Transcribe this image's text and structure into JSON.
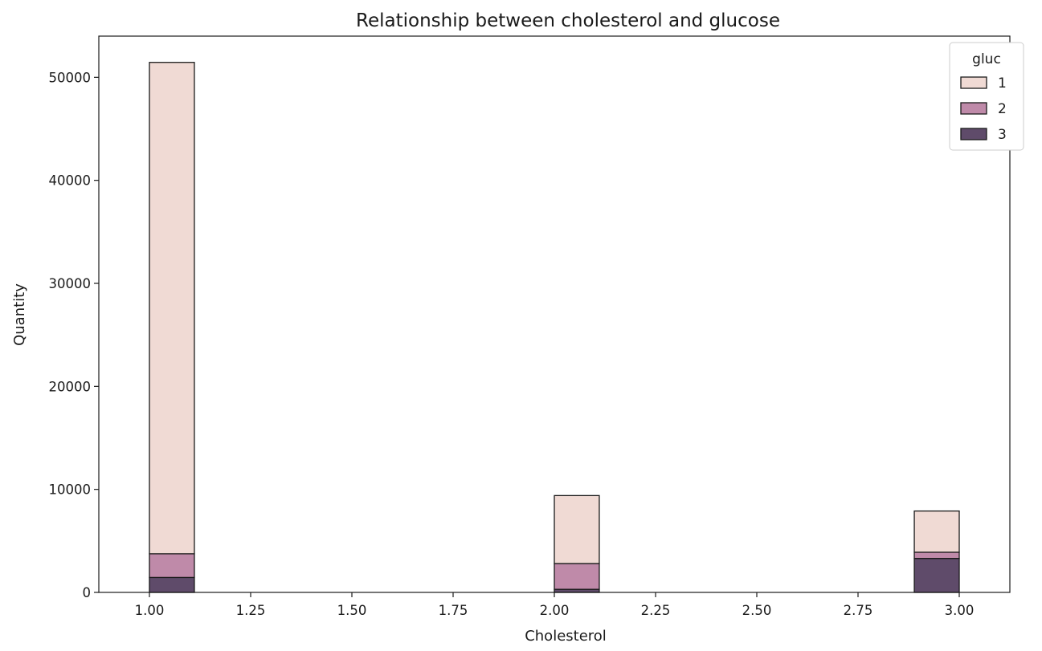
{
  "chart_data": {
    "type": "bar",
    "title": "Relationship between cholesterol and glucose",
    "xlabel": "Cholesterol",
    "ylabel": "Quantity",
    "xlim": [
      0.875,
      3.125
    ],
    "ylim": [
      0,
      54000
    ],
    "xticks": [
      "1.00",
      "1.25",
      "1.50",
      "1.75",
      "2.00",
      "2.25",
      "2.50",
      "2.75",
      "3.00"
    ],
    "yticks": [
      "0",
      "10000",
      "20000",
      "30000",
      "40000",
      "50000"
    ],
    "grid": false,
    "stacked": true,
    "legend": {
      "title": "gluc",
      "position": "top-right"
    },
    "bins": [
      {
        "x0": 1.0,
        "x1": 1.111
      },
      {
        "x0": 2.0,
        "x1": 2.111
      },
      {
        "x0": 2.889,
        "x1": 3.0
      }
    ],
    "series": [
      {
        "name": "3",
        "color": "#5f4b6a",
        "values": [
          1450,
          300,
          3300
        ]
      },
      {
        "name": "2",
        "color": "#bf8aa9",
        "values": [
          2300,
          2500,
          600
        ]
      },
      {
        "name": "1",
        "color": "#f0dad4",
        "values": [
          47700,
          6600,
          4000
        ]
      }
    ]
  }
}
